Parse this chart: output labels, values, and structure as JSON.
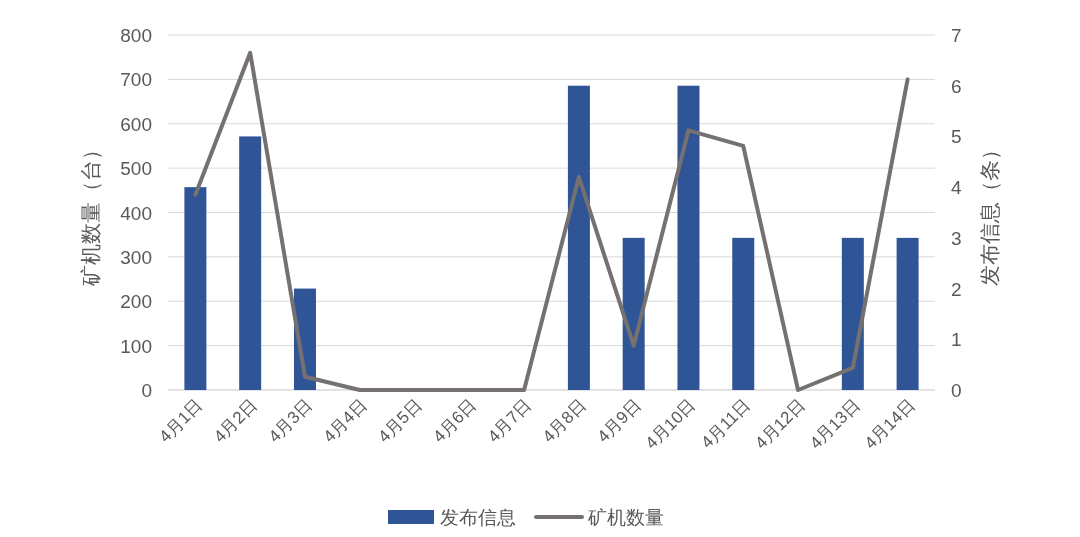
{
  "chart_data": {
    "type": "bar",
    "categories": [
      "4月1日",
      "4月2日",
      "4月3日",
      "4月4日",
      "4月5日",
      "4月6日",
      "4月7日",
      "4月8日",
      "4月9日",
      "4月10日",
      "4月11日",
      "4月12日",
      "4月13日",
      "4月14日"
    ],
    "series": [
      {
        "name": "发布信息",
        "axis": "y2",
        "color": "#2f5597",
        "values": [
          4,
          5,
          2,
          0,
          0,
          0,
          0,
          6,
          3,
          6,
          3,
          0,
          3,
          3
        ]
      },
      {
        "name": "矿机数量",
        "type": "line",
        "color": "#767171",
        "values": [
          440,
          760,
          30,
          0,
          0,
          0,
          0,
          480,
          100,
          585,
          550,
          0,
          50,
          700
        ]
      }
    ],
    "ylabel": "矿机数量（台）",
    "y2label": "发布信息（条）",
    "ylim": [
      0,
      800
    ],
    "yticks": [
      0,
      100,
      200,
      300,
      400,
      500,
      600,
      700,
      800
    ],
    "y2lim": [
      0,
      7
    ],
    "y2ticks": [
      0,
      1,
      2,
      3,
      4,
      5,
      6,
      7
    ],
    "grid": "y",
    "legend": "bottom"
  }
}
